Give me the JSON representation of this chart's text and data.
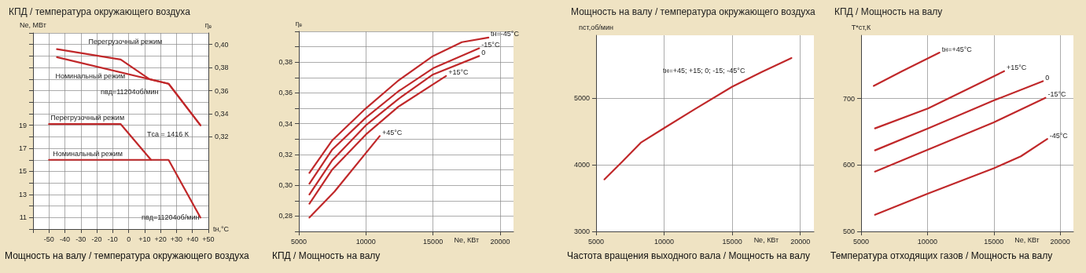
{
  "chart_data": [
    {
      "type": "line",
      "title": "КПД / температура окружающего воздуха",
      "xlabel": "tн,°C",
      "ylabel": "Ne, МВт",
      "y2label": "ηₑ",
      "xlim": [
        -60,
        50
      ],
      "xticks": [
        {
          "value": -60,
          "label": null
        },
        -50,
        -40,
        -30,
        -20,
        -10,
        0,
        {
          "value": 10,
          "label": "+10"
        },
        {
          "value": 20,
          "label": "+20"
        },
        {
          "value": 30,
          "label": "+30"
        },
        {
          "value": 40,
          "label": "+40"
        },
        {
          "value": 50,
          "label": "+50"
        }
      ],
      "ylim": [
        10,
        27
      ],
      "yticks": [
        {
          "value": 10,
          "label": null
        },
        11,
        {
          "value": 12,
          "label": null
        },
        13,
        {
          "value": 14,
          "label": null
        },
        15,
        {
          "value": 16,
          "label": null
        },
        17,
        {
          "value": 18,
          "label": null
        },
        19,
        {
          "value": 20,
          "label": null
        },
        {
          "value": 21,
          "label": null
        },
        {
          "value": 22,
          "label": null
        },
        {
          "value": 23,
          "label": null
        },
        {
          "value": 24,
          "label": null
        },
        {
          "value": 25,
          "label": null
        },
        {
          "value": 26,
          "label": null
        },
        {
          "value": 27,
          "label": null
        }
      ],
      "y2lim": [
        0.24,
        0.41
      ],
      "y2ticks": [
        {
          "value": 0.32,
          "label": "0,32"
        },
        {
          "value": 0.34,
          "label": "0,34"
        },
        {
          "value": 0.36,
          "label": "0,36"
        },
        {
          "value": 0.38,
          "label": "0,38"
        },
        {
          "value": 0.4,
          "label": "0,40"
        }
      ],
      "grid": true,
      "series": [
        {
          "name": "Перегрузочный режим",
          "axis": "y2",
          "color": "#c0282a",
          "x": [
            -45,
            -5,
            13,
            25,
            45
          ],
          "values": [
            0.396,
            0.387,
            0.37,
            0.366,
            0.33
          ]
        },
        {
          "name": "Номинальный режим",
          "axis": "y2",
          "color": "#c0282a",
          "x": [
            -45,
            25,
            45
          ],
          "values": [
            0.389,
            0.366,
            0.33
          ]
        },
        {
          "name": "Перегрузочный режим",
          "axis": "y",
          "color": "#c0282a",
          "x": [
            -50,
            -5,
            14
          ],
          "values": [
            19.1,
            19.1,
            16.0
          ]
        },
        {
          "name": "Номинальный режим",
          "axis": "y",
          "color": "#c0282a",
          "x": [
            -50,
            25,
            45
          ],
          "values": [
            16.0,
            16.0,
            11.0
          ]
        }
      ],
      "annotations": [
        "nвд=11204об/мин",
        "Tса = 1416 К",
        "nвд=11204об/мин",
        "Мощность на валу / температура окружающего воздуха"
      ]
    },
    {
      "type": "line",
      "xlabel": "Ne, КВт",
      "ylabel": "ηₑ",
      "xlim": [
        5000,
        21000
      ],
      "xticks": [
        5000,
        10000,
        15000,
        20000
      ],
      "ylim": [
        0.27,
        0.4
      ],
      "yticks": [
        {
          "value": 0.27,
          "label": null
        },
        {
          "value": 0.28,
          "label": "0,28"
        },
        {
          "value": 0.29,
          "label": null
        },
        {
          "value": 0.3,
          "label": "0,30"
        },
        {
          "value": 0.31,
          "label": null
        },
        {
          "value": 0.32,
          "label": "0,32"
        },
        {
          "value": 0.33,
          "label": null
        },
        {
          "value": 0.34,
          "label": "0,34"
        },
        {
          "value": 0.35,
          "label": null
        },
        {
          "value": 0.36,
          "label": "0,36"
        },
        {
          "value": 0.37,
          "label": null
        },
        {
          "value": 0.38,
          "label": "0,38"
        },
        {
          "value": 0.39,
          "label": null
        },
        {
          "value": 0.4,
          "label": null
        }
      ],
      "grid": true,
      "series": [
        {
          "name": "tн=-45°C",
          "color": "#c0282a",
          "x": [
            5790,
            7470,
            10000,
            12410,
            15000,
            17150,
            19130
          ],
          "values": [
            0.308,
            0.329,
            0.35,
            0.368,
            0.384,
            0.393,
            0.396
          ]
        },
        {
          "name": "-15°C",
          "color": "#c0282a",
          "x": [
            5790,
            7470,
            10000,
            12410,
            15000,
            18440
          ],
          "values": [
            0.301,
            0.323,
            0.344,
            0.361,
            0.376,
            0.389
          ]
        },
        {
          "name": "0",
          "color": "#c0282a",
          "x": [
            5790,
            7470,
            10000,
            12410,
            15000,
            18440
          ],
          "values": [
            0.294,
            0.316,
            0.339,
            0.356,
            0.372,
            0.384
          ]
        },
        {
          "name": "+15°C",
          "color": "#c0282a",
          "x": [
            5790,
            7470,
            10000,
            12410,
            15970
          ],
          "values": [
            0.288,
            0.31,
            0.333,
            0.351,
            0.371
          ]
        },
        {
          "name": "+45°C",
          "color": "#c0282a",
          "x": [
            5790,
            7670,
            11030
          ],
          "values": [
            0.279,
            0.296,
            0.332
          ]
        }
      ],
      "annotations": [
        "КПД / Мощность на валу"
      ]
    },
    {
      "type": "line",
      "title": "Мощность на валу / температура окружающего воздуха",
      "xlabel": "Ne, КВт",
      "ylabel": "nст,об/мин",
      "xlim": [
        5000,
        21000
      ],
      "xticks": [
        5000,
        10000,
        15000,
        20000
      ],
      "ylim": [
        3000,
        5940
      ],
      "yticks": [
        3000,
        4000,
        5000
      ],
      "grid": true,
      "series": [
        {
          "color": "#c0282a",
          "x": [
            5610,
            6900,
            8280,
            10000,
            12230,
            15000,
            17170,
            19350
          ],
          "values": [
            3780,
            4040,
            4330,
            4550,
            4830,
            5170,
            5390,
            5600
          ]
        }
      ],
      "annotations": [
        "tн=+45; +15; 0; -15; -45°C",
        "Частота вращения выходного вала / Мощность на валу"
      ]
    },
    {
      "type": "line",
      "title": "КПД / Мощность на валу",
      "xlabel": "Ne, КВт",
      "ylabel": "T*ст,К",
      "xlim": [
        5000,
        21000
      ],
      "xticks": [
        5000,
        10000,
        15000,
        20000
      ],
      "ylim": [
        500,
        795
      ],
      "yticks": [
        500,
        600,
        700
      ],
      "grid": true,
      "series": [
        {
          "name": "tн=+45°C",
          "color": "#c0282a",
          "x": [
            5950,
            8090,
            10910
          ],
          "values": [
            719,
            741,
            769
          ]
        },
        {
          "name": "+15°C",
          "color": "#c0282a",
          "x": [
            6050,
            10040,
            15780
          ],
          "values": [
            655,
            685,
            741
          ]
        },
        {
          "name": "0",
          "color": "#c0282a",
          "x": [
            6050,
            10040,
            15000,
            18700
          ],
          "values": [
            622,
            655,
            697,
            726
          ]
        },
        {
          "name": "-15°C",
          "color": "#c0282a",
          "x": [
            6050,
            10040,
            15000,
            18890
          ],
          "values": [
            590,
            623,
            664,
            701
          ]
        },
        {
          "name": "-45°C",
          "color": "#c0282a",
          "x": [
            6050,
            10040,
            15000,
            17040,
            19030
          ],
          "values": [
            525,
            557,
            595,
            613,
            639
          ]
        }
      ],
      "annotations": [
        "Температура отходящих газов / Мощность на валу"
      ]
    }
  ]
}
